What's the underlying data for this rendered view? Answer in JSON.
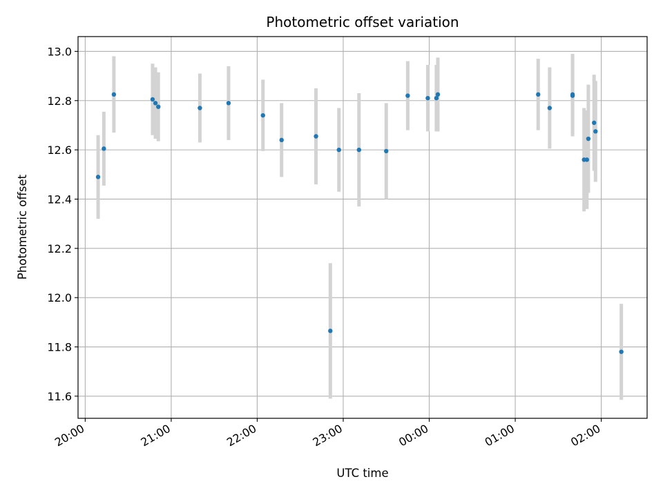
{
  "chart_data": {
    "type": "scatter",
    "title": "Photometric offset variation",
    "xlabel": "UTC time",
    "ylabel": "Photometric offset",
    "x_axis": "time",
    "xlim": [
      "19:55",
      "02:32"
    ],
    "ylim": [
      11.51,
      13.06
    ],
    "grid": true,
    "x_ticks": [
      "20:00",
      "21:00",
      "22:00",
      "23:00",
      "00:00",
      "01:00",
      "02:00"
    ],
    "y_ticks": [
      "11.6",
      "11.8",
      "12.0",
      "12.2",
      "12.4",
      "12.6",
      "12.8",
      "13.0"
    ],
    "colors": {
      "points": "#1f77b4",
      "errorbars": "#d3d3d3",
      "grid": "#b0b0b0"
    },
    "points": [
      {
        "x": "20:09",
        "y": 12.49,
        "err": 0.17
      },
      {
        "x": "20:13",
        "y": 12.605,
        "err": 0.15
      },
      {
        "x": "20:20",
        "y": 12.825,
        "err": 0.155
      },
      {
        "x": "20:47",
        "y": 12.805,
        "err": 0.145
      },
      {
        "x": "20:49",
        "y": 12.79,
        "err": 0.145
      },
      {
        "x": "20:51",
        "y": 12.775,
        "err": 0.14
      },
      {
        "x": "21:20",
        "y": 12.77,
        "err": 0.14
      },
      {
        "x": "21:40",
        "y": 12.79,
        "err": 0.15
      },
      {
        "x": "22:04",
        "y": 12.74,
        "err": 0.145
      },
      {
        "x": "22:17",
        "y": 12.64,
        "err": 0.15
      },
      {
        "x": "22:41",
        "y": 12.655,
        "err": 0.195
      },
      {
        "x": "22:51",
        "y": 11.865,
        "err": 0.275
      },
      {
        "x": "22:57",
        "y": 12.6,
        "err": 0.17
      },
      {
        "x": "23:11",
        "y": 12.6,
        "err": 0.23
      },
      {
        "x": "23:30",
        "y": 12.595,
        "err": 0.195
      },
      {
        "x": "23:45",
        "y": 12.82,
        "err": 0.14
      },
      {
        "x": "23:59",
        "y": 12.81,
        "err": 0.135
      },
      {
        "x": "00:05",
        "y": 12.81,
        "err": 0.135
      },
      {
        "x": "00:06",
        "y": 12.825,
        "err": 0.15
      },
      {
        "x": "01:16",
        "y": 12.825,
        "err": 0.145
      },
      {
        "x": "01:24",
        "y": 12.77,
        "err": 0.165
      },
      {
        "x": "01:40",
        "y": 12.82,
        "err": 0.165
      },
      {
        "x": "01:40",
        "y": 12.825,
        "err": 0.165
      },
      {
        "x": "01:48",
        "y": 12.56,
        "err": 0.21
      },
      {
        "x": "01:50",
        "y": 12.56,
        "err": 0.2
      },
      {
        "x": "01:51",
        "y": 12.645,
        "err": 0.22
      },
      {
        "x": "01:55",
        "y": 12.71,
        "err": 0.195
      },
      {
        "x": "01:56",
        "y": 12.675,
        "err": 0.205
      },
      {
        "x": "02:14",
        "y": 11.78,
        "err": 0.195
      }
    ]
  }
}
